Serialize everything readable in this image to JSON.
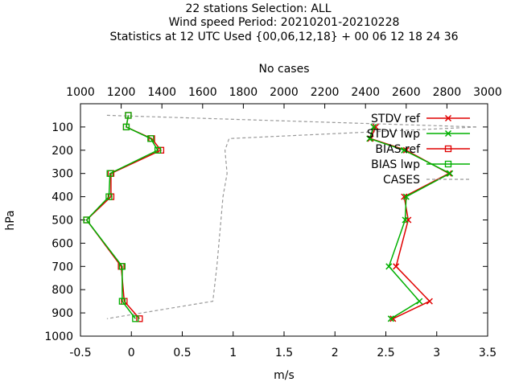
{
  "chart_data": {
    "type": "line",
    "title_lines": [
      "22 stations Selection: ALL",
      "Wind speed  Period: 20210201-20210228",
      "Statistics at 12 UTC  Used {00,06,12,18} + 00 06 12 18 24 36"
    ],
    "xlabel": "m/s",
    "ylabel": "hPa",
    "x2label": "No cases",
    "xlim": [
      -0.5,
      3.5
    ],
    "ylim": [
      1000,
      0
    ],
    "x2lim": [
      1000,
      3000
    ],
    "xticks": [
      "-0.5",
      "0",
      "0.5",
      "1",
      "1.5",
      "2",
      "2.5",
      "3",
      "3.5"
    ],
    "yticks": [
      "100",
      "200",
      "300",
      "400",
      "500",
      "600",
      "700",
      "800",
      "900",
      "1000"
    ],
    "x2ticks": [
      "1000",
      "1200",
      "1400",
      "1600",
      "1800",
      "2000",
      "2200",
      "2400",
      "2600",
      "2800",
      "3000"
    ],
    "legend_position": "top-right",
    "grid": false,
    "series": [
      {
        "name": "STDV ref",
        "color": "#e00000",
        "marker": "x",
        "axis": "x",
        "points": [
          [
            2.4,
            100
          ],
          [
            2.35,
            150
          ],
          [
            2.7,
            200
          ],
          [
            3.12,
            300
          ],
          [
            2.68,
            400
          ],
          [
            2.72,
            500
          ],
          [
            2.6,
            700
          ],
          [
            2.93,
            850
          ],
          [
            2.57,
            925
          ]
        ]
      },
      {
        "name": "STDV lwp",
        "color": "#00b000",
        "marker": "x",
        "axis": "x",
        "points": [
          [
            2.38,
            100
          ],
          [
            2.34,
            150
          ],
          [
            2.68,
            200
          ],
          [
            3.13,
            300
          ],
          [
            2.7,
            400
          ],
          [
            2.69,
            500
          ],
          [
            2.53,
            700
          ],
          [
            2.83,
            850
          ],
          [
            2.55,
            925
          ]
        ]
      },
      {
        "name": "BIAS ref",
        "color": "#e00000",
        "marker": "square",
        "axis": "x",
        "points": [
          [
            -0.03,
            50
          ],
          [
            -0.05,
            100
          ],
          [
            0.2,
            150
          ],
          [
            0.29,
            200
          ],
          [
            -0.2,
            300
          ],
          [
            -0.2,
            400
          ],
          [
            -0.44,
            500
          ],
          [
            -0.1,
            700
          ],
          [
            -0.07,
            850
          ],
          [
            0.08,
            925
          ]
        ]
      },
      {
        "name": "BIAS lwp",
        "color": "#00b000",
        "marker": "square",
        "axis": "x",
        "points": [
          [
            -0.03,
            50
          ],
          [
            -0.05,
            100
          ],
          [
            0.19,
            150
          ],
          [
            0.26,
            200
          ],
          [
            -0.21,
            300
          ],
          [
            -0.22,
            400
          ],
          [
            -0.44,
            500
          ],
          [
            -0.09,
            700
          ],
          [
            -0.09,
            850
          ],
          [
            0.04,
            925
          ]
        ]
      },
      {
        "name": "CASES",
        "color": "#999999",
        "marker": "none",
        "dashed": true,
        "axis": "x2",
        "points": [
          [
            1130,
            50
          ],
          [
            2950,
            100
          ],
          [
            1730,
            150
          ],
          [
            1710,
            200
          ],
          [
            1720,
            300
          ],
          [
            1700,
            400
          ],
          [
            1690,
            500
          ],
          [
            1670,
            700
          ],
          [
            1650,
            850
          ],
          [
            1130,
            925
          ]
        ]
      }
    ]
  }
}
